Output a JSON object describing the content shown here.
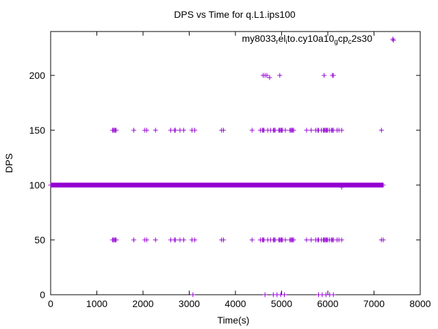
{
  "chart_data": {
    "type": "scatter",
    "title": "DPS vs Time for q.L1.ips100",
    "xlabel": "Time(s)",
    "ylabel": "DPS",
    "xlim": [
      0,
      8000
    ],
    "ylim": [
      0,
      240
    ],
    "xticks": [
      0,
      1000,
      2000,
      3000,
      4000,
      5000,
      6000,
      7000,
      8000
    ],
    "yticks": [
      0,
      50,
      100,
      150,
      200
    ],
    "grid": false,
    "legend_position": "top-right",
    "marker": "plus",
    "color": "#9400d3",
    "series": [
      {
        "name_parts": [
          {
            "text": "my8033",
            "sub": false
          },
          {
            "text": "r",
            "sub": true
          },
          {
            "text": "el",
            "sub": false
          },
          {
            "text": "i",
            "sub": true
          },
          {
            "text": "to.cy10a10",
            "sub": false
          },
          {
            "text": "g",
            "sub": true
          },
          {
            "text": "cp",
            "sub": false
          },
          {
            "text": "c",
            "sub": true
          },
          {
            "text": "2s30",
            "sub": false
          }
        ],
        "dense_band": {
          "y": 100,
          "x_start": 0,
          "x_end": 7200
        },
        "points": [
          [
            3080,
            0
          ],
          [
            4640,
            0
          ],
          [
            4820,
            0
          ],
          [
            4900,
            0
          ],
          [
            4980,
            0
          ],
          [
            5060,
            0
          ],
          [
            5800,
            0
          ],
          [
            5880,
            0
          ],
          [
            5960,
            0
          ],
          [
            6040,
            0
          ],
          [
            6120,
            0
          ],
          [
            1340,
            50
          ],
          [
            1360,
            50
          ],
          [
            1380,
            50
          ],
          [
            1400,
            50
          ],
          [
            1420,
            50
          ],
          [
            1800,
            50
          ],
          [
            2040,
            50
          ],
          [
            2080,
            50
          ],
          [
            2270,
            50
          ],
          [
            2600,
            50
          ],
          [
            2680,
            50
          ],
          [
            2700,
            50
          ],
          [
            2800,
            50
          ],
          [
            2880,
            50
          ],
          [
            3060,
            50
          ],
          [
            3120,
            50
          ],
          [
            3700,
            50
          ],
          [
            3740,
            50
          ],
          [
            4360,
            50
          ],
          [
            4540,
            50
          ],
          [
            4580,
            50
          ],
          [
            4600,
            50
          ],
          [
            4620,
            50
          ],
          [
            4700,
            50
          ],
          [
            4760,
            50
          ],
          [
            4820,
            50
          ],
          [
            4840,
            50
          ],
          [
            4860,
            50
          ],
          [
            4940,
            50
          ],
          [
            4960,
            50
          ],
          [
            4980,
            50
          ],
          [
            5000,
            50
          ],
          [
            5020,
            50
          ],
          [
            5080,
            50
          ],
          [
            5180,
            50
          ],
          [
            5200,
            50
          ],
          [
            5220,
            50
          ],
          [
            5240,
            50
          ],
          [
            5260,
            50
          ],
          [
            5540,
            50
          ],
          [
            5640,
            50
          ],
          [
            5740,
            50
          ],
          [
            5780,
            50
          ],
          [
            5800,
            50
          ],
          [
            5860,
            50
          ],
          [
            5900,
            50
          ],
          [
            5920,
            50
          ],
          [
            5940,
            50
          ],
          [
            5960,
            50
          ],
          [
            5980,
            50
          ],
          [
            6000,
            50
          ],
          [
            6040,
            50
          ],
          [
            6080,
            50
          ],
          [
            6100,
            50
          ],
          [
            6120,
            50
          ],
          [
            6200,
            50
          ],
          [
            6240,
            50
          ],
          [
            6300,
            50
          ],
          [
            7160,
            50
          ],
          [
            7200,
            50
          ],
          [
            1340,
            150
          ],
          [
            1360,
            150
          ],
          [
            1380,
            150
          ],
          [
            1400,
            150
          ],
          [
            1420,
            150
          ],
          [
            1800,
            150
          ],
          [
            2040,
            150
          ],
          [
            2080,
            150
          ],
          [
            2270,
            150
          ],
          [
            2600,
            150
          ],
          [
            2680,
            150
          ],
          [
            2700,
            150
          ],
          [
            2800,
            150
          ],
          [
            2880,
            150
          ],
          [
            3060,
            150
          ],
          [
            3120,
            150
          ],
          [
            3700,
            150
          ],
          [
            3740,
            150
          ],
          [
            4360,
            150
          ],
          [
            4540,
            150
          ],
          [
            4580,
            150
          ],
          [
            4600,
            150
          ],
          [
            4620,
            150
          ],
          [
            4700,
            150
          ],
          [
            4760,
            150
          ],
          [
            4820,
            150
          ],
          [
            4840,
            150
          ],
          [
            4860,
            150
          ],
          [
            4940,
            150
          ],
          [
            4960,
            150
          ],
          [
            4980,
            150
          ],
          [
            5000,
            150
          ],
          [
            5020,
            150
          ],
          [
            5080,
            150
          ],
          [
            5180,
            150
          ],
          [
            5200,
            150
          ],
          [
            5220,
            150
          ],
          [
            5240,
            150
          ],
          [
            5260,
            150
          ],
          [
            5540,
            150
          ],
          [
            5640,
            150
          ],
          [
            5740,
            150
          ],
          [
            5780,
            150
          ],
          [
            5800,
            150
          ],
          [
            5860,
            150
          ],
          [
            5900,
            150
          ],
          [
            5920,
            150
          ],
          [
            5940,
            150
          ],
          [
            5960,
            150
          ],
          [
            5980,
            150
          ],
          [
            6000,
            150
          ],
          [
            6040,
            150
          ],
          [
            6080,
            150
          ],
          [
            6100,
            150
          ],
          [
            6120,
            150
          ],
          [
            6200,
            150
          ],
          [
            6240,
            150
          ],
          [
            6300,
            150
          ],
          [
            7160,
            150
          ],
          [
            4600,
            200
          ],
          [
            4640,
            200
          ],
          [
            4680,
            200
          ],
          [
            4740,
            198
          ],
          [
            4960,
            200
          ],
          [
            5920,
            200
          ],
          [
            6100,
            200
          ],
          [
            6120,
            200
          ],
          [
            6300,
            98
          ],
          [
            7420,
            232
          ]
        ]
      }
    ]
  }
}
